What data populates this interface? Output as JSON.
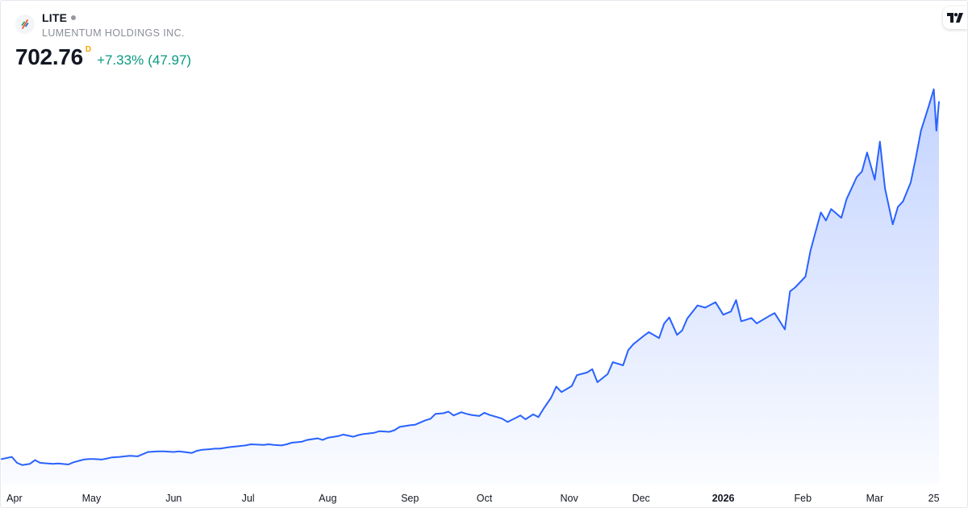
{
  "symbol": {
    "ticker": "LITE",
    "company": "LUMENTUM HOLDINGS INC.",
    "price": "702.76",
    "period_badge": "D",
    "change_percent": "+7.33%",
    "change_abs": "(47.97)"
  },
  "colors": {
    "line": "#2962ff",
    "area_top": "#2962ff",
    "change_positive": "#089981",
    "badge": "#f7a600"
  },
  "icons": {
    "brand": "tradingview-logo-icon",
    "symbol": "lumentum-logo-icon"
  },
  "chart_data": {
    "type": "area",
    "title": "",
    "xlabel": "",
    "ylabel": "",
    "ylim": [
      0,
      850
    ],
    "x_tick_labels": [
      {
        "label": "Apr",
        "date": "2025-04-01",
        "bold": false
      },
      {
        "label": "May",
        "date": "2025-05-01",
        "bold": false
      },
      {
        "label": "Jun",
        "date": "2025-06-02",
        "bold": false
      },
      {
        "label": "Jul",
        "date": "2025-07-01",
        "bold": false
      },
      {
        "label": "Aug",
        "date": "2025-08-01",
        "bold": false
      },
      {
        "label": "Sep",
        "date": "2025-09-02",
        "bold": false
      },
      {
        "label": "Oct",
        "date": "2025-10-01",
        "bold": false
      },
      {
        "label": "Nov",
        "date": "2025-11-03",
        "bold": false
      },
      {
        "label": "Dec",
        "date": "2025-12-01",
        "bold": false
      },
      {
        "label": "2026",
        "date": "2026-01-02",
        "bold": true
      },
      {
        "label": "Feb",
        "date": "2026-02-02",
        "bold": false
      },
      {
        "label": "Mar",
        "date": "2026-03-02",
        "bold": false
      },
      {
        "label": "25",
        "date": "2026-03-25",
        "bold": false
      }
    ],
    "grid": false,
    "legend": "none",
    "series": [
      {
        "points": [
          [
            "2025-03-27",
            47
          ],
          [
            "2025-03-31",
            51
          ],
          [
            "2025-04-02",
            40
          ],
          [
            "2025-04-04",
            36
          ],
          [
            "2025-04-07",
            38
          ],
          [
            "2025-04-09",
            45
          ],
          [
            "2025-04-11",
            40
          ],
          [
            "2025-04-14",
            39
          ],
          [
            "2025-04-16",
            38
          ],
          [
            "2025-04-18",
            39
          ],
          [
            "2025-04-22",
            37
          ],
          [
            "2025-04-24",
            41
          ],
          [
            "2025-04-28",
            46
          ],
          [
            "2025-04-30",
            47
          ],
          [
            "2025-05-02",
            47
          ],
          [
            "2025-05-05",
            46
          ],
          [
            "2025-05-07",
            48
          ],
          [
            "2025-05-09",
            50
          ],
          [
            "2025-05-12",
            51
          ],
          [
            "2025-05-14",
            52
          ],
          [
            "2025-05-16",
            53
          ],
          [
            "2025-05-19",
            52
          ],
          [
            "2025-05-21",
            56
          ],
          [
            "2025-05-23",
            60
          ],
          [
            "2025-05-27",
            61
          ],
          [
            "2025-05-29",
            61
          ],
          [
            "2025-06-02",
            60
          ],
          [
            "2025-06-04",
            61
          ],
          [
            "2025-06-06",
            60
          ],
          [
            "2025-06-09",
            58
          ],
          [
            "2025-06-11",
            62
          ],
          [
            "2025-06-13",
            64
          ],
          [
            "2025-06-16",
            65
          ],
          [
            "2025-06-18",
            66
          ],
          [
            "2025-06-20",
            66
          ],
          [
            "2025-06-24",
            69
          ],
          [
            "2025-06-26",
            70
          ],
          [
            "2025-06-30",
            72
          ],
          [
            "2025-07-02",
            74
          ],
          [
            "2025-07-07",
            73
          ],
          [
            "2025-07-09",
            74
          ],
          [
            "2025-07-11",
            73
          ],
          [
            "2025-07-14",
            72
          ],
          [
            "2025-07-16",
            74
          ],
          [
            "2025-07-18",
            77
          ],
          [
            "2025-07-22",
            79
          ],
          [
            "2025-07-24",
            82
          ],
          [
            "2025-07-28",
            85
          ],
          [
            "2025-07-30",
            82
          ],
          [
            "2025-08-01",
            86
          ],
          [
            "2025-08-05",
            89
          ],
          [
            "2025-08-07",
            92
          ],
          [
            "2025-08-11",
            88
          ],
          [
            "2025-08-13",
            91
          ],
          [
            "2025-08-15",
            93
          ],
          [
            "2025-08-19",
            95
          ],
          [
            "2025-08-21",
            98
          ],
          [
            "2025-08-25",
            97
          ],
          [
            "2025-08-27",
            100
          ],
          [
            "2025-08-29",
            106
          ],
          [
            "2025-09-02",
            109
          ],
          [
            "2025-09-04",
            110
          ],
          [
            "2025-09-08",
            118
          ],
          [
            "2025-09-10",
            121
          ],
          [
            "2025-09-12",
            130
          ],
          [
            "2025-09-15",
            131
          ],
          [
            "2025-09-17",
            134
          ],
          [
            "2025-09-19",
            127
          ],
          [
            "2025-09-22",
            133
          ],
          [
            "2025-09-24",
            130
          ],
          [
            "2025-09-26",
            128
          ],
          [
            "2025-09-29",
            126
          ],
          [
            "2025-10-01",
            132
          ],
          [
            "2025-10-03",
            128
          ],
          [
            "2025-10-06",
            124
          ],
          [
            "2025-10-08",
            121
          ],
          [
            "2025-10-10",
            115
          ],
          [
            "2025-10-13",
            122
          ],
          [
            "2025-10-15",
            127
          ],
          [
            "2025-10-17",
            120
          ],
          [
            "2025-10-20",
            129
          ],
          [
            "2025-10-22",
            124
          ],
          [
            "2025-10-24",
            139
          ],
          [
            "2025-10-27",
            160
          ],
          [
            "2025-10-29",
            180
          ],
          [
            "2025-10-31",
            170
          ],
          [
            "2025-11-04",
            181
          ],
          [
            "2025-11-06",
            201
          ],
          [
            "2025-11-10",
            206
          ],
          [
            "2025-11-12",
            212
          ],
          [
            "2025-11-14",
            188
          ],
          [
            "2025-11-18",
            203
          ],
          [
            "2025-11-20",
            225
          ],
          [
            "2025-11-24",
            219
          ],
          [
            "2025-11-26",
            247
          ],
          [
            "2025-11-28",
            258
          ],
          [
            "2025-12-02",
            273
          ],
          [
            "2025-12-04",
            280
          ],
          [
            "2025-12-08",
            269
          ],
          [
            "2025-12-10",
            296
          ],
          [
            "2025-12-12",
            307
          ],
          [
            "2025-12-15",
            275
          ],
          [
            "2025-12-17",
            283
          ],
          [
            "2025-12-19",
            305
          ],
          [
            "2025-12-23",
            329
          ],
          [
            "2025-12-26",
            325
          ],
          [
            "2025-12-30",
            335
          ],
          [
            "2026-01-02",
            312
          ],
          [
            "2026-01-05",
            318
          ],
          [
            "2026-01-07",
            339
          ],
          [
            "2026-01-09",
            300
          ],
          [
            "2026-01-13",
            306
          ],
          [
            "2026-01-15",
            296
          ],
          [
            "2026-01-20",
            310
          ],
          [
            "2026-01-22",
            315
          ],
          [
            "2026-01-26",
            285
          ],
          [
            "2026-01-28",
            355
          ],
          [
            "2026-01-30",
            362
          ],
          [
            "2026-02-03",
            382
          ],
          [
            "2026-02-05",
            430
          ],
          [
            "2026-02-09",
            500
          ],
          [
            "2026-02-11",
            485
          ],
          [
            "2026-02-13",
            506
          ],
          [
            "2026-02-17",
            490
          ],
          [
            "2026-02-19",
            524
          ],
          [
            "2026-02-23",
            565
          ],
          [
            "2026-02-25",
            575
          ],
          [
            "2026-02-27",
            610
          ],
          [
            "2026-03-02",
            560
          ],
          [
            "2026-03-04",
            630
          ],
          [
            "2026-03-06",
            544
          ],
          [
            "2026-03-09",
            478
          ],
          [
            "2026-03-11",
            510
          ],
          [
            "2026-03-13",
            520
          ],
          [
            "2026-03-16",
            555
          ],
          [
            "2026-03-18",
            600
          ],
          [
            "2026-03-20",
            650
          ],
          [
            "2026-03-23",
            695
          ],
          [
            "2026-03-25",
            726
          ],
          [
            "2026-03-26",
            650
          ],
          [
            "2026-03-27",
            702.76
          ]
        ]
      }
    ]
  }
}
